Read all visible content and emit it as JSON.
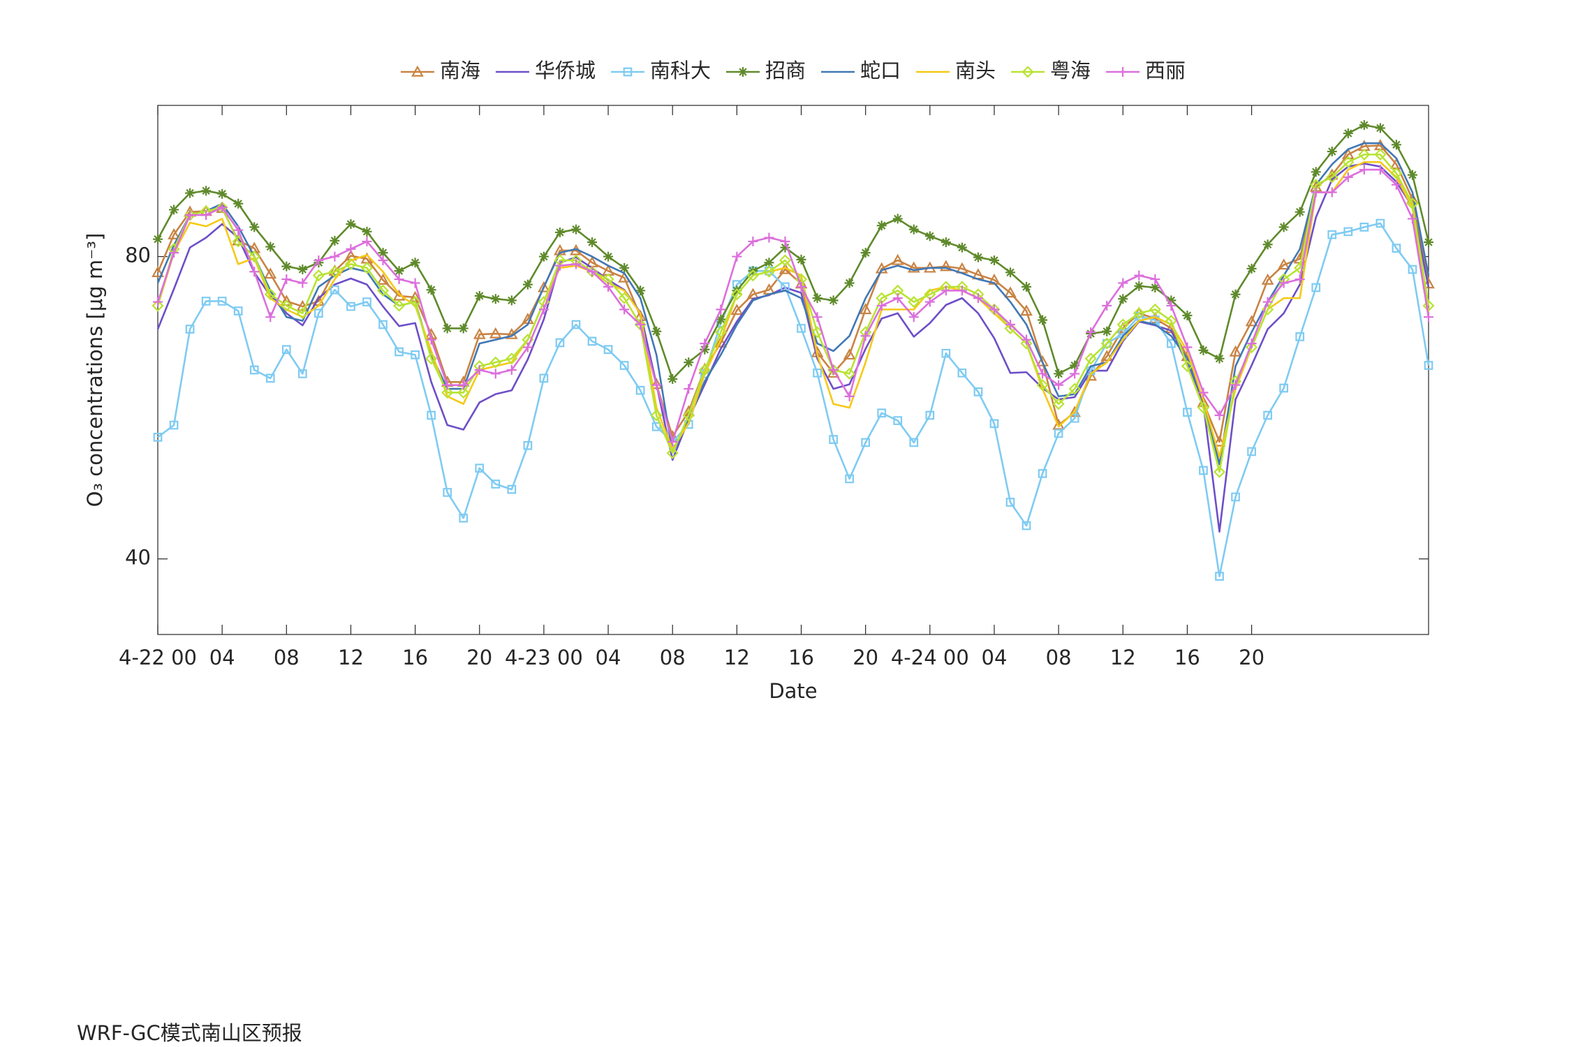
{
  "chart_data": {
    "type": "line",
    "y_label": "O₃ concentrations [μg m⁻³]",
    "x_label": "Date",
    "caption": "WRF-GC模式南山区预报",
    "x": [
      0,
      1,
      2,
      3,
      4,
      5,
      6,
      7,
      8,
      9,
      10,
      11,
      12,
      13,
      14,
      15,
      16,
      17,
      18,
      19,
      20,
      21,
      22,
      23,
      24,
      25,
      26,
      27,
      28,
      29,
      30,
      31,
      32,
      33,
      34,
      35,
      36,
      37,
      38,
      39,
      40,
      41,
      42,
      43,
      44,
      45,
      46,
      47,
      48,
      49,
      50,
      51,
      52,
      53,
      54,
      55,
      56,
      57,
      58,
      59,
      60,
      61,
      62,
      63,
      64,
      65,
      66,
      67,
      68,
      69,
      70,
      71,
      72,
      73,
      74,
      75,
      76,
      77,
      78,
      79
    ],
    "xlim": [
      0,
      79
    ],
    "xticks": [
      {
        "value": 0,
        "label": "4-22 00"
      },
      {
        "value": 4,
        "label": "04"
      },
      {
        "value": 8,
        "label": "08"
      },
      12,
      16,
      20,
      {
        "value": 24,
        "label": "4-23 00"
      },
      {
        "value": 28,
        "label": "04"
      },
      {
        "value": 32,
        "label": "08"
      },
      {
        "value": 36,
        "label": "12"
      },
      {
        "value": 40,
        "label": "16"
      },
      {
        "value": 44,
        "label": "20"
      },
      {
        "value": 48,
        "label": "4-24 00"
      },
      {
        "value": 52,
        "label": "04"
      },
      {
        "value": 56,
        "label": "08"
      },
      {
        "value": 60,
        "label": "12"
      },
      {
        "value": 64,
        "label": "16"
      },
      {
        "value": 68,
        "label": "20"
      }
    ],
    "ylim": [
      30,
      100
    ],
    "yticks": [
      40,
      80
    ],
    "legend": "top",
    "series": [
      {
        "name": "南海",
        "color": "#c98343",
        "marker": "triangle",
        "values": [
          77.9,
          82.9,
          85.9,
          86.0,
          86.4,
          82.1,
          81.1,
          77.7,
          74.1,
          73.4,
          74.1,
          78.1,
          80.1,
          79.7,
          76.9,
          74.8,
          74.6,
          69.7,
          63.4,
          63.4,
          69.7,
          69.8,
          69.7,
          71.7,
          75.9,
          80.8,
          80.8,
          79.2,
          78.1,
          77.2,
          72.1,
          63.1,
          56.2,
          59.5,
          65.1,
          68.6,
          72.9,
          75.0,
          75.6,
          78.3,
          76.4,
          67.3,
          64.6,
          67.0,
          73.0,
          78.4,
          79.5,
          78.5,
          78.5,
          78.7,
          78.4,
          77.6,
          76.9,
          75.2,
          72.8,
          66.1,
          57.7,
          59.4,
          64.2,
          66.8,
          70.5,
          72.5,
          71.8,
          70.5,
          66.8,
          60.7,
          55.5,
          67.4,
          71.4,
          76.9,
          78.9,
          79.7,
          89.2,
          90.8,
          93.5,
          94.6,
          94.7,
          92.2,
          87.6,
          76.4
        ]
      },
      {
        "name": "华侨城",
        "color": "#6d4fc8",
        "marker": "none",
        "values": [
          70.4,
          75.7,
          81.2,
          82.5,
          84.3,
          82.5,
          77.9,
          74.8,
          72.5,
          70.9,
          74.5,
          76.3,
          77.1,
          76.3,
          73.4,
          70.8,
          71.2,
          63.4,
          57.7,
          57.1,
          60.7,
          61.8,
          62.3,
          66.4,
          71.7,
          79.2,
          79.9,
          78.5,
          76.9,
          75.6,
          72.6,
          63.1,
          53.1,
          58.5,
          63.1,
          67.8,
          71.4,
          74.4,
          74.9,
          75.9,
          75.2,
          66.5,
          62.5,
          63.1,
          67.8,
          71.8,
          72.5,
          69.4,
          71.2,
          73.6,
          74.5,
          72.5,
          69.2,
          64.6,
          64.7,
          62.6,
          61.1,
          61.4,
          64.9,
          64.9,
          68.8,
          71.4,
          70.9,
          70.2,
          65.8,
          60.5,
          43.6,
          61.1,
          65.6,
          70.4,
          72.5,
          76.3,
          85.2,
          90.2,
          91.9,
          92.3,
          91.9,
          89.9,
          86.6,
          75.9
        ]
      },
      {
        "name": "南科大",
        "color": "#7fcbf2",
        "marker": "square",
        "values": [
          56.1,
          57.7,
          70.4,
          74.1,
          74.1,
          72.8,
          65.0,
          63.9,
          67.7,
          64.5,
          72.5,
          75.6,
          73.4,
          74.0,
          71.0,
          67.4,
          67.0,
          59.0,
          48.8,
          45.4,
          52.0,
          49.9,
          49.2,
          55.0,
          63.9,
          68.6,
          71.0,
          68.8,
          67.7,
          65.6,
          62.3,
          57.5,
          55.5,
          57.8,
          64.5,
          71.2,
          76.3,
          78.1,
          78.1,
          76.0,
          70.5,
          64.6,
          55.8,
          50.6,
          55.4,
          59.3,
          58.3,
          55.4,
          59.0,
          67.2,
          64.6,
          62.1,
          57.9,
          47.5,
          44.4,
          51.3,
          56.6,
          58.6,
          64.9,
          68.5,
          69.8,
          72.1,
          71.6,
          68.5,
          59.4,
          51.7,
          37.7,
          48.2,
          54.2,
          59.0,
          62.6,
          69.4,
          75.9,
          82.9,
          83.3,
          83.9,
          84.4,
          81.1,
          78.3,
          65.6
        ]
      },
      {
        "name": "招商",
        "color": "#5f8a2b",
        "marker": "asterisk",
        "values": [
          82.3,
          86.2,
          88.4,
          88.7,
          88.3,
          87.0,
          83.9,
          81.3,
          78.7,
          78.3,
          79.2,
          82.1,
          84.3,
          83.3,
          80.5,
          78.1,
          79.2,
          75.6,
          70.5,
          70.5,
          74.8,
          74.4,
          74.2,
          76.3,
          80.0,
          83.2,
          83.6,
          81.9,
          80.0,
          78.5,
          75.5,
          70.1,
          63.8,
          66.0,
          67.7,
          71.7,
          75.5,
          78.1,
          79.2,
          81.2,
          79.6,
          74.5,
          74.2,
          76.5,
          80.5,
          84.1,
          85.0,
          83.6,
          82.7,
          81.9,
          81.2,
          79.9,
          79.5,
          77.9,
          76.0,
          71.6,
          64.5,
          65.6,
          69.8,
          70.1,
          74.4,
          76.1,
          75.9,
          74.2,
          72.2,
          67.6,
          66.5,
          75.0,
          78.4,
          81.6,
          83.9,
          85.9,
          91.2,
          93.9,
          96.3,
          97.4,
          97.0,
          94.8,
          90.8,
          81.9
        ]
      },
      {
        "name": "蛇口",
        "color": "#4178b5",
        "marker": "none",
        "values": [
          76.5,
          81.5,
          85.5,
          86,
          87,
          84,
          80,
          75.5,
          72,
          71.5,
          76,
          77.5,
          78.5,
          78,
          75,
          73.5,
          74,
          67,
          62.5,
          62.5,
          68.5,
          69,
          69.5,
          71,
          76,
          80.5,
          81,
          80,
          78.8,
          77.8,
          74.5,
          67,
          54,
          58.5,
          63.5,
          67,
          71,
          74.2,
          75,
          75.5,
          74.5,
          68.5,
          67.5,
          69.5,
          74.5,
          78.2,
          78.8,
          78.2,
          78.5,
          78.5,
          77.8,
          77,
          76.5,
          74,
          71,
          66,
          61.5,
          61.8,
          65.5,
          66,
          69.5,
          71.5,
          71,
          69.5,
          66.5,
          61,
          52.5,
          65.5,
          70,
          74,
          77.5,
          81,
          89.5,
          92.2,
          94.2,
          95,
          95,
          93,
          88.5,
          77.5
        ]
      },
      {
        "name": "南头",
        "color": "#f5c917",
        "marker": "none",
        "values": [
          73.5,
          80.5,
          84.5,
          84,
          85,
          79,
          79.8,
          74.5,
          73,
          72,
          73.5,
          77,
          79.5,
          80.2,
          78,
          75,
          73.5,
          67.5,
          61.5,
          60.5,
          65,
          65.5,
          66,
          69,
          74,
          78.5,
          78.8,
          78,
          76.5,
          75.5,
          72.5,
          60,
          54.5,
          58,
          64.5,
          69,
          75,
          77.5,
          78,
          78.5,
          77.5,
          67,
          60.5,
          60,
          66,
          73,
          73,
          73,
          75.5,
          76,
          75.5,
          74.5,
          72.5,
          70.5,
          68.5,
          62.5,
          57.5,
          59.5,
          64.5,
          66,
          69,
          71.5,
          72,
          71,
          67.5,
          61,
          53.5,
          62.5,
          68,
          73,
          74.5,
          74.5,
          88.5,
          88.5,
          91.5,
          92.5,
          92.5,
          90.5,
          86.5,
          72.5
        ]
      },
      {
        "name": "粤海",
        "color": "#b8e332",
        "marker": "diamond",
        "values": [
          73.5,
          81,
          85.5,
          86,
          86.5,
          82,
          80,
          75,
          73.5,
          72.5,
          77.5,
          78,
          79,
          78.5,
          75.5,
          73.5,
          74,
          66.5,
          62,
          62,
          65.5,
          66,
          66.5,
          69,
          74,
          79.5,
          79.5,
          78,
          77,
          74.5,
          71,
          59,
          54,
          59,
          65,
          70,
          75,
          77.5,
          78,
          79.5,
          77,
          70,
          65,
          64.5,
          70,
          74.5,
          75.5,
          74,
          75,
          76,
          76,
          75,
          73,
          70.5,
          68.5,
          63,
          60.5,
          62.5,
          66.5,
          68.5,
          71,
          72.5,
          73,
          71.5,
          65.5,
          60,
          51.5,
          63.5,
          68,
          73,
          77,
          78.5,
          89.5,
          90.5,
          92.5,
          93.5,
          93.5,
          91,
          87,
          73.5
        ]
      },
      {
        "name": "西丽",
        "color": "#dc6fdc",
        "marker": "plus",
        "values": [
          74,
          80.5,
          85.5,
          85.5,
          86.5,
          83.5,
          78,
          72,
          77,
          76.5,
          79.5,
          80,
          81,
          82,
          79.5,
          77,
          76.5,
          69,
          63,
          63,
          65,
          64.5,
          65,
          68,
          73,
          78.8,
          79,
          78,
          76,
          73,
          71,
          63,
          55.5,
          62.5,
          68.5,
          73,
          80,
          82,
          82.5,
          82,
          76,
          72,
          65,
          61.5,
          69.5,
          73.5,
          74.5,
          72,
          74,
          75.5,
          75.5,
          74.5,
          73,
          71,
          69,
          64.5,
          63,
          64.5,
          70,
          73.5,
          76.5,
          77.5,
          77,
          73.5,
          68,
          62,
          59,
          63,
          68.5,
          74,
          76.5,
          77,
          88.5,
          88.5,
          90.5,
          91.5,
          91.5,
          89.5,
          85,
          72
        ]
      }
    ]
  }
}
